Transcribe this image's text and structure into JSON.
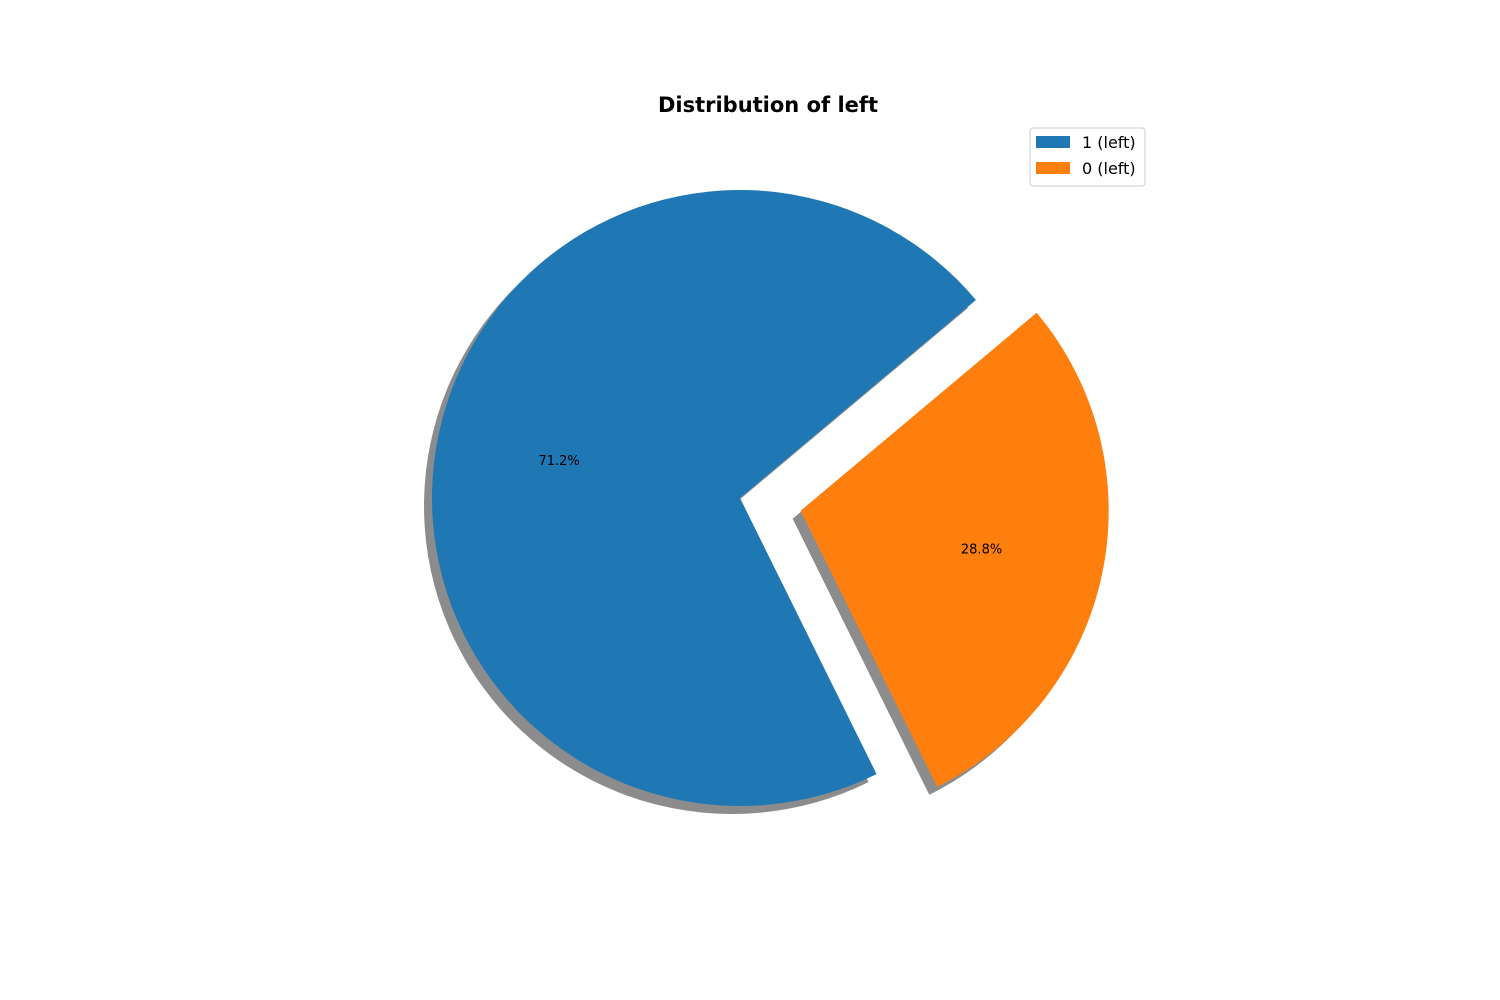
{
  "chart_data": {
    "type": "pie",
    "title": "Distribution of left",
    "categories": [
      "1 (left)",
      "0 (left)"
    ],
    "values": [
      71.2,
      28.8
    ],
    "value_labels": [
      "71.2%",
      "28.8%"
    ],
    "colors": [
      "#1f77b4",
      "#ff7f0e"
    ],
    "exploded": [
      false,
      true
    ],
    "shadow": true,
    "legend_placement": "top-right"
  }
}
